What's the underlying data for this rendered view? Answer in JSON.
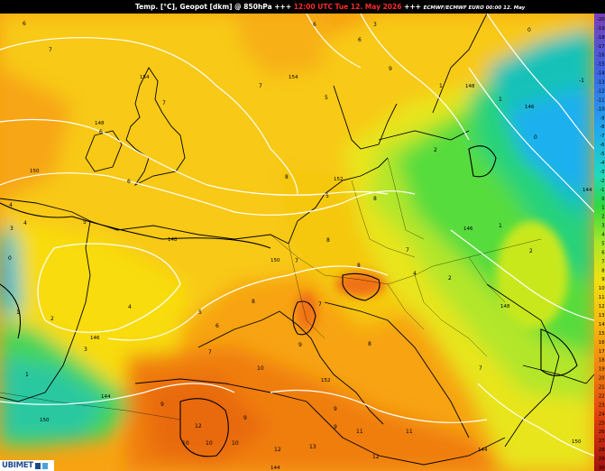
{
  "title": {
    "parameter": "Temp. [°C], Geopot [dkm] @ 850hPa",
    "separator": "+++",
    "valid_time": "12:00 UTC Tue 12. May 2026",
    "model_run": "ECMWF/ECMWF EURO 00:00 12. May"
  },
  "brand": "UBIMET",
  "colors": {
    "title_time": "#ff2a2a",
    "temp_warm_orange": "#f79a0f",
    "temp_yellow": "#f5d60a",
    "temp_green": "#3fdc3c",
    "temp_cold_blue": "#1ea8f0",
    "geopotential_line": "#ffffff",
    "coastline": "#000000"
  },
  "map": {
    "geopotential_labels": [
      "154",
      "154",
      "148",
      "150",
      "152",
      "150",
      "146",
      "148",
      "148",
      "144",
      "144",
      "150",
      "152",
      "146",
      "146",
      "148",
      "144",
      "150",
      "144"
    ],
    "temperature_labels": [
      "6",
      "7",
      "7",
      "7",
      "6",
      "6",
      "9",
      "6",
      "8",
      "8",
      "4",
      "5",
      "8",
      "7",
      "3",
      "4",
      "5",
      "6",
      "0",
      "1",
      "2",
      "3",
      "1",
      "4",
      "5",
      "7",
      "6",
      "0",
      "2",
      "4",
      "7",
      "8",
      "8",
      "9",
      "10",
      "11",
      "12",
      "13",
      "12",
      "10",
      "9",
      "12",
      "7",
      "8",
      "9",
      "7",
      "1",
      "2",
      "2",
      "1",
      "1",
      "3",
      "0",
      "-1",
      "5",
      "9",
      "10",
      "10",
      "9",
      "11"
    ]
  },
  "color_scale": {
    "ticks": [
      "-20",
      "-19",
      "-18",
      "-17",
      "-16",
      "-15",
      "-14",
      "-13",
      "-12",
      "-11",
      "-10",
      "-9",
      "-8",
      "-7",
      "-6",
      "-5",
      "-4",
      "-3",
      "-2",
      "-1",
      "0",
      "1",
      "2",
      "3",
      "4",
      "5",
      "6",
      "7",
      "8",
      "9",
      "10",
      "11",
      "12",
      "13",
      "14",
      "15",
      "16",
      "17",
      "18",
      "19",
      "20",
      "21",
      "22",
      "23",
      "24",
      "25",
      "26",
      "27",
      "28",
      "29",
      "30"
    ]
  }
}
